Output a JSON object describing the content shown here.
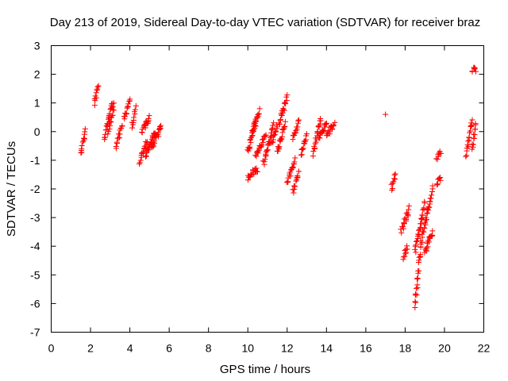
{
  "chart_data": {
    "type": "scatter",
    "title": "Day 213 of 2019, Sidereal Day-to-day VTEC variation (SDTVAR) for receiver braz",
    "xlabel": "GPS time / hours",
    "ylabel": "SDTVAR / TECUs",
    "xlim": [
      0,
      22
    ],
    "ylim": [
      -7,
      3
    ],
    "xticks": [
      0,
      2,
      4,
      6,
      8,
      10,
      12,
      14,
      16,
      18,
      20,
      22
    ],
    "yticks": [
      -7,
      -6,
      -5,
      -4,
      -3,
      -2,
      -1,
      0,
      1,
      2,
      3
    ],
    "grid": false,
    "marker": "+",
    "colors": {
      "points": "#ff0000",
      "axes": "#000000",
      "background": "#ffffff"
    },
    "series": [
      {
        "name": "SDTVAR",
        "segments": [
          {
            "x": [
              1.5,
              1.75
            ],
            "y": [
              -0.8,
              0.0
            ]
          },
          {
            "x": [
              2.2,
              2.4
            ],
            "y": [
              1.0,
              1.6
            ]
          },
          {
            "x": [
              2.7,
              3.1
            ],
            "y": [
              -0.3,
              1.0
            ]
          },
          {
            "x": [
              2.9,
              3.2
            ],
            "y": [
              0.0,
              0.9
            ]
          },
          {
            "x": [
              3.3,
              3.6
            ],
            "y": [
              -0.5,
              0.3
            ]
          },
          {
            "x": [
              3.7,
              4.0
            ],
            "y": [
              0.4,
              1.1
            ]
          },
          {
            "x": [
              4.1,
              4.3
            ],
            "y": [
              0.2,
              0.8
            ]
          },
          {
            "x": [
              4.5,
              4.9
            ],
            "y": [
              -1.1,
              -0.3
            ]
          },
          {
            "x": [
              4.6,
              5.0
            ],
            "y": [
              0.0,
              0.5
            ]
          },
          {
            "x": [
              4.8,
              5.3
            ],
            "y": [
              -0.8,
              0.0
            ]
          },
          {
            "x": [
              5.1,
              5.6
            ],
            "y": [
              -0.6,
              0.2
            ]
          },
          {
            "x": [
              10.0,
              10.5
            ],
            "y": [
              -1.6,
              -1.3
            ]
          },
          {
            "x": [
              10.0,
              10.4
            ],
            "y": [
              -0.7,
              0.3
            ]
          },
          {
            "x": [
              10.2,
              10.6
            ],
            "y": [
              0.0,
              0.7
            ]
          },
          {
            "x": [
              10.4,
              10.9
            ],
            "y": [
              -0.9,
              -0.1
            ]
          },
          {
            "x": [
              10.8,
              11.3
            ],
            "y": [
              -1.1,
              0.2
            ]
          },
          {
            "x": [
              11.2,
              11.5
            ],
            "y": [
              -0.4,
              0.2
            ]
          },
          {
            "x": [
              11.5,
              11.9
            ],
            "y": [
              -0.7,
              0.3
            ]
          },
          {
            "x": [
              11.6,
              12.0
            ],
            "y": [
              0.3,
              1.2
            ]
          },
          {
            "x": [
              12.0,
              12.4
            ],
            "y": [
              -1.8,
              -1.0
            ]
          },
          {
            "x": [
              12.3,
              12.6
            ],
            "y": [
              -2.1,
              -1.4
            ]
          },
          {
            "x": [
              12.3,
              12.6
            ],
            "y": [
              -0.3,
              0.4
            ]
          },
          {
            "x": [
              12.7,
              13.0
            ],
            "y": [
              -0.8,
              -0.1
            ]
          },
          {
            "x": [
              13.3,
              13.7
            ],
            "y": [
              -0.8,
              0.5
            ]
          },
          {
            "x": [
              13.6,
              14.0
            ],
            "y": [
              -0.3,
              0.3
            ]
          },
          {
            "x": [
              14.0,
              14.4
            ],
            "y": [
              -0.2,
              0.3
            ]
          },
          {
            "x": [
              17.0,
              17.0
            ],
            "y": [
              0.6,
              0.6
            ]
          },
          {
            "x": [
              17.3,
              17.5
            ],
            "y": [
              -2.0,
              -1.5
            ]
          },
          {
            "x": [
              17.8,
              18.2
            ],
            "y": [
              -3.5,
              -2.7
            ]
          },
          {
            "x": [
              17.9,
              18.1
            ],
            "y": [
              -4.4,
              -4.0
            ]
          },
          {
            "x": [
              18.5,
              18.8
            ],
            "y": [
              -6.1,
              -4.0
            ]
          },
          {
            "x": [
              18.5,
              19.0
            ],
            "y": [
              -4.2,
              -2.5
            ]
          },
          {
            "x": [
              18.8,
              19.4
            ],
            "y": [
              -3.9,
              -2.0
            ]
          },
          {
            "x": [
              19.0,
              19.4
            ],
            "y": [
              -4.2,
              -3.5
            ]
          },
          {
            "x": [
              19.6,
              19.8
            ],
            "y": [
              -0.9,
              -0.7
            ]
          },
          {
            "x": [
              19.6,
              19.8
            ],
            "y": [
              -1.8,
              -1.6
            ]
          },
          {
            "x": [
              21.1,
              21.4
            ],
            "y": [
              -0.8,
              0.4
            ]
          },
          {
            "x": [
              21.4,
              21.6
            ],
            "y": [
              -0.6,
              0.3
            ]
          },
          {
            "x": [
              21.4,
              21.6
            ],
            "y": [
              2.1,
              2.2
            ]
          }
        ]
      }
    ]
  }
}
